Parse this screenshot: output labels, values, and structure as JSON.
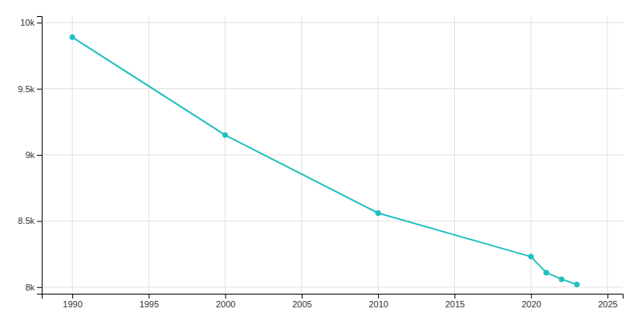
{
  "chart_data": {
    "type": "line",
    "x": [
      1990,
      2000,
      2010,
      2020,
      2021,
      2022,
      2023
    ],
    "values": [
      9890,
      9150,
      8560,
      8230,
      8110,
      8060,
      8020
    ],
    "color": "#22BFBF",
    "marker": "circle",
    "xlim": [
      1988,
      2026
    ],
    "xticks": [
      1990,
      1995,
      2000,
      2005,
      2010,
      2015,
      2020,
      2025
    ],
    "ylim": [
      7950,
      10050
    ],
    "yticks": [
      {
        "value": 8000,
        "label": "8k"
      },
      {
        "value": 8500,
        "label": "8.5k"
      },
      {
        "value": 9000,
        "label": "9k"
      },
      {
        "value": 9500,
        "label": "9.5k"
      },
      {
        "value": 10000,
        "label": "10k"
      }
    ],
    "grid": true
  }
}
